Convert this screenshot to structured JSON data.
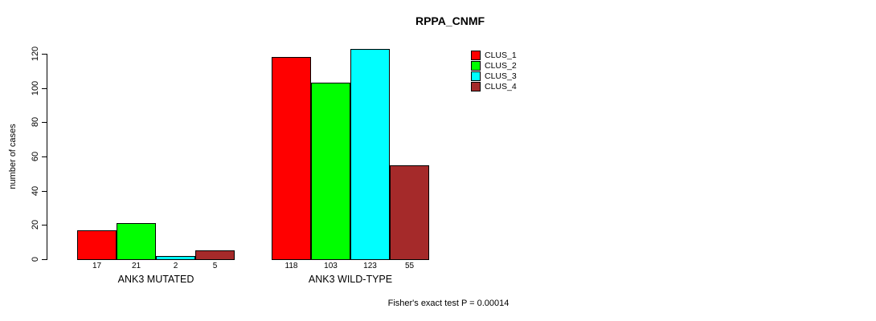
{
  "chart_data": {
    "type": "bar",
    "title": "RPPA_CNMF",
    "xlabel": "",
    "ylabel": "number of cases",
    "categories": [
      "ANK3 MUTATED",
      "ANK3 WILD-TYPE"
    ],
    "series": [
      {
        "name": "CLUS_1",
        "color": "#FF0000",
        "values": [
          17,
          118
        ]
      },
      {
        "name": "CLUS_2",
        "color": "#00FF00",
        "values": [
          21,
          103
        ]
      },
      {
        "name": "CLUS_3",
        "color": "#00FFFF",
        "values": [
          2,
          123
        ]
      },
      {
        "name": "CLUS_4",
        "color": "#A52A2A",
        "values": [
          5,
          55
        ]
      }
    ],
    "bar_value_labels": [
      [
        "17",
        "21",
        "2",
        "5"
      ],
      [
        "118",
        "103",
        "123",
        "55"
      ]
    ],
    "ylim": [
      0,
      120
    ],
    "yticks": [
      0,
      20,
      40,
      60,
      80,
      100,
      120
    ],
    "grid": false,
    "legend_position": "top-right",
    "annotation": "Fisher's exact test P = 0.00014"
  }
}
